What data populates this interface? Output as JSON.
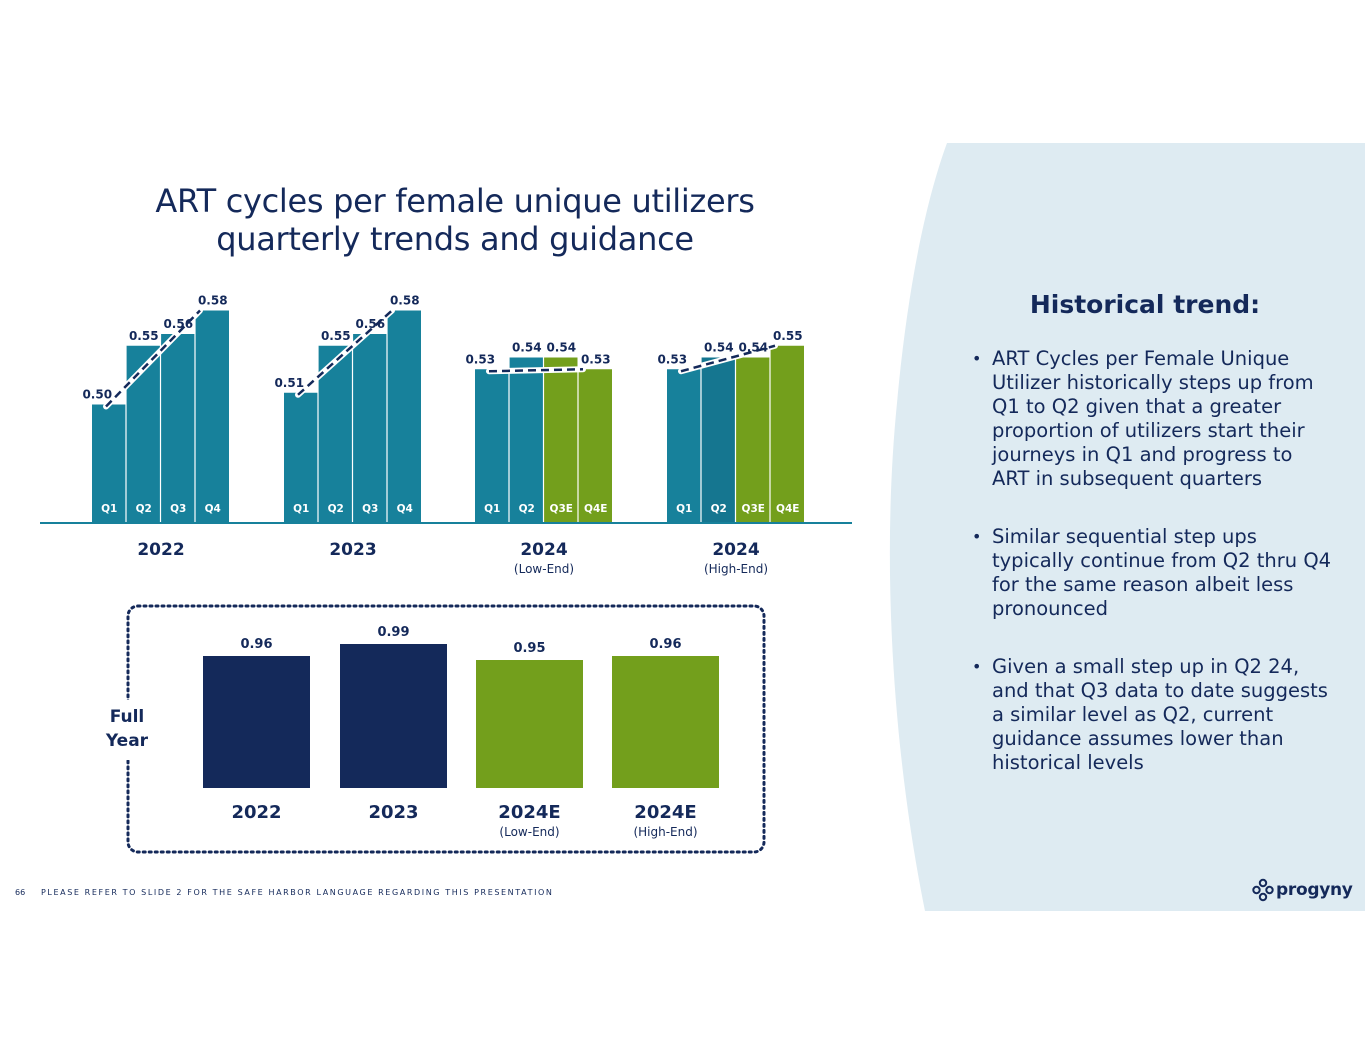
{
  "title_line1": "ART cycles per female unique utilizers",
  "title_line2": "quarterly trends and guidance",
  "side_panel": {
    "heading": "Historical trend:",
    "bullets": [
      "ART Cycles per Female Unique Utilizer historically steps up from Q1 to Q2 given that a greater proportion of utilizers start their journeys in Q1 and progress to ART in subsequent quarters",
      "Similar sequential step ups typically continue from Q2 thru Q4 for the same reason albeit less pronounced",
      "Given a small step up in Q2 24, and that Q3 data to date suggests a similar level as Q2, current guidance assumes lower than historical levels"
    ]
  },
  "footer": {
    "page_number": "66",
    "disclaimer": "PLEASE REFER TO SLIDE 2 FOR THE SAFE HARBOR LANGUAGE REGARDING THIS PRESENTATION"
  },
  "logo": {
    "text": "progyny",
    "icon": "progyny-logo-icon"
  },
  "colors": {
    "navy": "#14295a",
    "teal": "#17819b",
    "teal_dark": "#157690",
    "green": "#739f1c",
    "panel": "#deebf2"
  },
  "chart_data": [
    {
      "type": "bar",
      "title": "ART cycles per female unique utilizers quarterly trends and guidance",
      "groups": [
        {
          "label": "2022",
          "sublabel": "",
          "categories": [
            "Q1",
            "Q2",
            "Q3",
            "Q4"
          ],
          "values": [
            0.5,
            0.55,
            0.56,
            0.58
          ],
          "estimate": [
            false,
            false,
            false,
            false
          ],
          "labels": [
            "0.50",
            "0.55",
            "0.56",
            "0.58"
          ]
        },
        {
          "label": "2023",
          "sublabel": "",
          "categories": [
            "Q1",
            "Q2",
            "Q3",
            "Q4"
          ],
          "values": [
            0.51,
            0.55,
            0.56,
            0.58
          ],
          "estimate": [
            false,
            false,
            false,
            false
          ],
          "labels": [
            "0.51",
            "0.55",
            "0.56",
            "0.58"
          ]
        },
        {
          "label": "2024",
          "sublabel": "(Low-End)",
          "categories": [
            "Q1",
            "Q2",
            "Q3E",
            "Q4E"
          ],
          "values": [
            0.53,
            0.54,
            0.54,
            0.53
          ],
          "estimate": [
            false,
            false,
            true,
            true
          ],
          "labels": [
            "0.53",
            "0.54",
            "0.54",
            "0.53"
          ]
        },
        {
          "label": "2024",
          "sublabel": "(High-End)",
          "categories": [
            "Q1",
            "Q2",
            "Q3E",
            "Q4E"
          ],
          "values": [
            0.53,
            0.54,
            0.54,
            0.55
          ],
          "estimate": [
            false,
            false,
            true,
            true
          ],
          "labels": [
            "0.53",
            "0.54",
            "0.54",
            "0.55"
          ]
        }
      ],
      "trendline": "dashed",
      "xlabel": "",
      "ylabel": "",
      "ylim": [
        0.4,
        0.6
      ],
      "grid": false
    },
    {
      "type": "bar",
      "title": "Full Year",
      "categories": [
        "2022",
        "2023",
        "2024E",
        "2024E"
      ],
      "sublabels": [
        "",
        "",
        "(Low-End)",
        "(High-End)"
      ],
      "values": [
        0.96,
        0.99,
        0.95,
        0.96
      ],
      "labels": [
        "0.96",
        "0.99",
        "0.95",
        "0.96"
      ],
      "estimate": [
        false,
        false,
        true,
        true
      ],
      "ylim": [
        0.63,
        1.0
      ],
      "grid": false
    }
  ]
}
